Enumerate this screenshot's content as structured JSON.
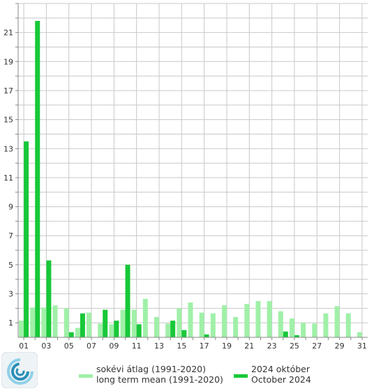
{
  "chart_data": {
    "type": "bar",
    "x_tick_labels": [
      "01",
      "03",
      "05",
      "07",
      "09",
      "11",
      "13",
      "15",
      "17",
      "19",
      "21",
      "23",
      "25",
      "27",
      "29",
      "31"
    ],
    "y_tick_labels": [
      "1",
      "3",
      "5",
      "7",
      "9",
      "11",
      "13",
      "15",
      "17",
      "19",
      "21"
    ],
    "ylim": [
      0,
      23
    ],
    "xlim": [
      0.5,
      31.5
    ],
    "grid": true,
    "days": [
      1,
      2,
      3,
      4,
      5,
      6,
      7,
      8,
      9,
      10,
      11,
      12,
      13,
      14,
      15,
      16,
      17,
      18,
      19,
      20,
      21,
      22,
      23,
      24,
      25,
      26,
      27,
      28,
      29,
      30,
      31
    ],
    "series": [
      {
        "name": "sokévi átlag (1991-2020)",
        "name_line2": "long term mean (1991-2020)",
        "color": "#a0f0a8",
        "values": [
          1.15,
          2.05,
          2.05,
          2.2,
          2.0,
          0.65,
          1.7,
          0.95,
          0.9,
          1.9,
          1.9,
          2.65,
          1.4,
          0.95,
          2.0,
          2.4,
          1.7,
          1.65,
          2.2,
          1.4,
          2.3,
          2.5,
          2.5,
          1.8,
          1.3,
          1.0,
          0.95,
          1.65,
          2.15,
          1.65,
          0.35
        ]
      },
      {
        "name": "2024 október",
        "name_line2": "October 2024",
        "color": "#18c838",
        "values": [
          13.5,
          21.8,
          5.3,
          0.0,
          0.35,
          1.65,
          0.0,
          1.9,
          1.15,
          5.0,
          0.9,
          0.0,
          0.0,
          1.15,
          0.5,
          0.0,
          0.2,
          0.0,
          0.0,
          0.0,
          0.0,
          0.0,
          0.0,
          0.4,
          0.15,
          0.0,
          0.0,
          0.0,
          0.0,
          0.0,
          0.0
        ]
      }
    ]
  },
  "logo": {
    "name": "service-logo",
    "colors": [
      "#2a8fb8",
      "#8fd0e8"
    ]
  }
}
